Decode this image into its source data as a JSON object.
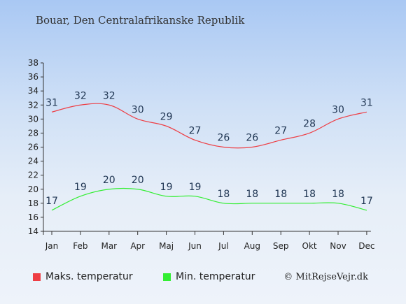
{
  "chart_data": {
    "type": "line",
    "title": "Bouar, Den Centralafrikanske Republik",
    "categories": [
      "Jan",
      "Feb",
      "Mar",
      "Apr",
      "Maj",
      "Jun",
      "Jul",
      "Aug",
      "Sep",
      "Okt",
      "Nov",
      "Dec"
    ],
    "series": [
      {
        "name": "Maks. temperatur",
        "color": "#ee3e44",
        "values": [
          31,
          32,
          32,
          30,
          29,
          27,
          26,
          26,
          27,
          28,
          30,
          31
        ]
      },
      {
        "name": "Min. temperatur",
        "color": "#33ee33",
        "values": [
          17,
          19,
          20,
          20,
          19,
          19,
          18,
          18,
          18,
          18,
          18,
          17
        ]
      }
    ],
    "ylim": [
      14,
      38
    ],
    "yticks": [
      14,
      16,
      18,
      20,
      22,
      24,
      26,
      28,
      30,
      32,
      34,
      36,
      38
    ],
    "grid": false,
    "legend": "bottom-left"
  },
  "credit": "© MitRejseVejr.dk"
}
